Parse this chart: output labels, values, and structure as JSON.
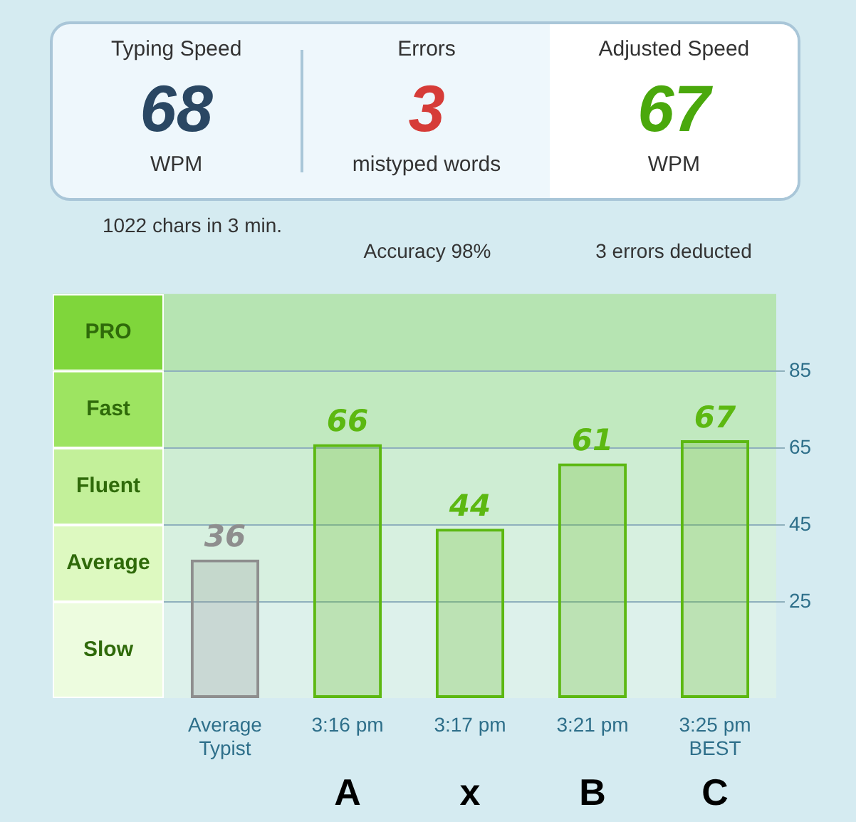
{
  "chart_data": [
    {
      "type": "other",
      "annotations": [
        "Typing Speed",
        "68",
        "WPM",
        "Errors",
        "3",
        "mistyped words",
        "Adjusted Speed",
        "67",
        "WPM",
        "1022 chars in 3 min.",
        "Accuracy 98%",
        "3 errors deducted"
      ]
    },
    {
      "type": "bar",
      "categories": [
        "Average Typist",
        "3:16 pm",
        "3:17 pm",
        "3:21 pm",
        "3:25 pm\nBEST"
      ],
      "values": [
        36,
        66,
        44,
        61,
        67
      ],
      "colors": [
        "#8e8e8e",
        "#5cb811",
        "#5cb811",
        "#5cb811",
        "#5cb811"
      ],
      "data_labels": true,
      "ylim": [
        0,
        105
      ],
      "yticks": [
        25,
        45,
        65,
        85
      ],
      "grid": "y",
      "bands": [
        {
          "axis": "y",
          "from": 0,
          "to": 25,
          "label": "Slow",
          "color": "#edfcdf"
        },
        {
          "axis": "y",
          "from": 25,
          "to": 45,
          "label": "Average",
          "color": "#ddf9c0"
        },
        {
          "axis": "y",
          "from": 45,
          "to": 65,
          "label": "Fluent",
          "color": "#c3f09a"
        },
        {
          "axis": "y",
          "from": 65,
          "to": 85,
          "label": "Fast",
          "color": "#9de461"
        },
        {
          "axis": "y",
          "from": 85,
          "to": 105,
          "label": "PRO",
          "color": "#7fd63b"
        }
      ],
      "annotations": [
        "A",
        "x",
        "B",
        "C"
      ]
    }
  ]
}
